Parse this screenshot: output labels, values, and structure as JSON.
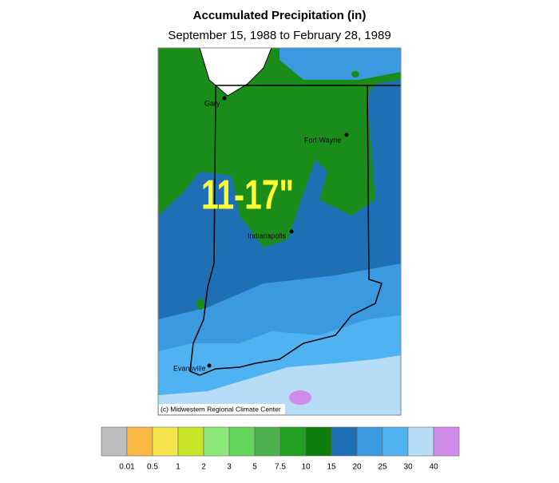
{
  "header": {
    "title": "Accumulated Precipitation (in)",
    "subtitle": "September 15, 1988 to February 28, 1989"
  },
  "map": {
    "annotation": "11-17\"",
    "credit": "(c) Midwestern Regional Climate Center",
    "cities": [
      {
        "name": "Gary"
      },
      {
        "name": "Fort Wayne"
      },
      {
        "name": "Indianapolis"
      },
      {
        "name": "Evansville"
      }
    ]
  },
  "legend": {
    "colors": [
      "#bdbdbd",
      "#fbb843",
      "#f5e54a",
      "#c8e627",
      "#8de87a",
      "#63d65a",
      "#4cb04c",
      "#22a022",
      "#0c7c0c",
      "#1f6fb5",
      "#3a9ae0",
      "#4eb3f0",
      "#b6dcf7",
      "#d08ae8"
    ],
    "labels": [
      0.01,
      0.5,
      1,
      2,
      3,
      5,
      7.5,
      10,
      15,
      20,
      25,
      30,
      40
    ]
  }
}
